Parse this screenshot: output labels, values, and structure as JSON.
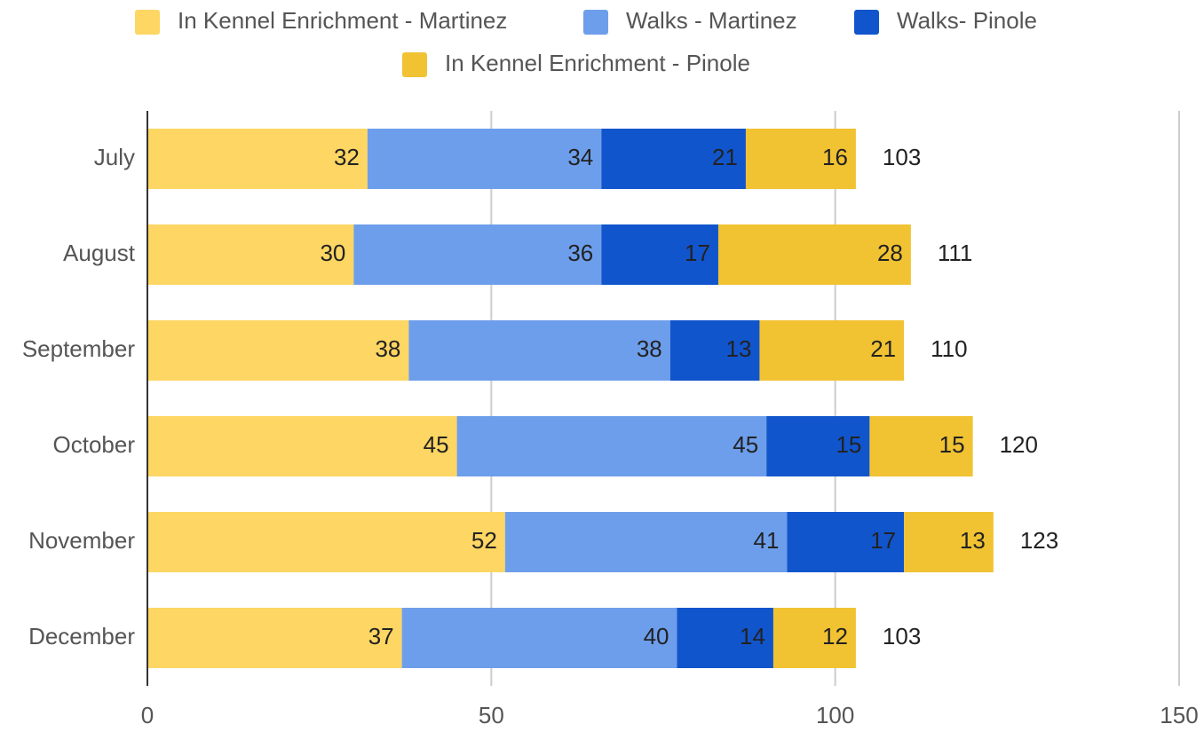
{
  "chart_data": {
    "type": "stacked_bar_horizontal",
    "categories": [
      "July",
      "August",
      "September",
      "October",
      "November",
      "December"
    ],
    "series": [
      {
        "name": "In Kennel Enrichment - Martinez",
        "color": "#fdd663",
        "values": [
          32,
          30,
          38,
          45,
          52,
          37
        ]
      },
      {
        "name": "Walks - Martinez",
        "color": "#6d9eeb",
        "values": [
          34,
          36,
          38,
          45,
          41,
          40
        ]
      },
      {
        "name": "Walks- Pinole",
        "color": "#1155cc",
        "values": [
          21,
          17,
          13,
          15,
          17,
          14
        ]
      },
      {
        "name": "In Kennel Enrichment - Pinole",
        "color": "#f1c232",
        "values": [
          16,
          28,
          21,
          15,
          13,
          12
        ]
      }
    ],
    "totals": [
      103,
      111,
      110,
      120,
      123,
      103
    ],
    "xlim": [
      0,
      150
    ],
    "xticks": [
      0,
      50,
      100,
      150
    ],
    "grid": true,
    "legend": "top"
  }
}
